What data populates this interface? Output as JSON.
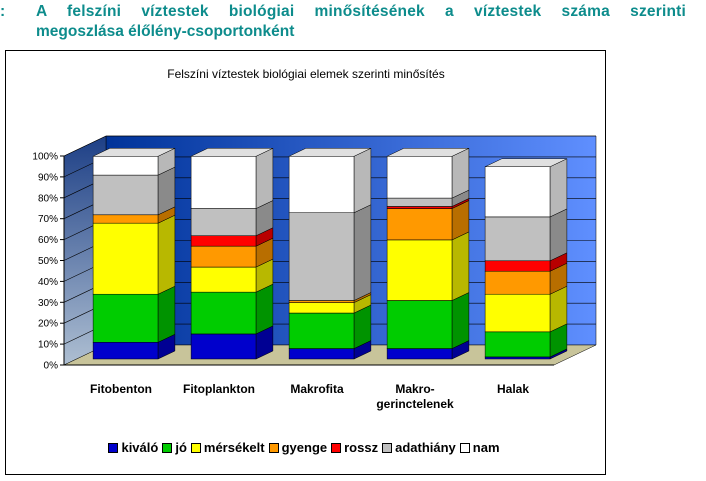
{
  "heading": {
    "bullet": ":",
    "line1": "A felszíni víztestek biológiai minősítésének a víztestek száma szerinti",
    "line2": "megoszlása élőlény-csoportonként"
  },
  "chart_data": {
    "type": "bar",
    "stacked": true,
    "three_d": true,
    "title": "Felszíni víztestek biológiai elemek szerinti minősítés",
    "categories": [
      "Fitobenton",
      "Fitoplankton",
      "Makrofita",
      "Makro-\ngerinctelenek",
      "Halak"
    ],
    "ylim": [
      0,
      100
    ],
    "yticks": [
      "0%",
      "10%",
      "20%",
      "30%",
      "40%",
      "50%",
      "60%",
      "70%",
      "80%",
      "90%",
      "100%"
    ],
    "legend_position": "bottom",
    "series": [
      {
        "name": "kiváló",
        "color": "#0000cc",
        "values": [
          8,
          12,
          5,
          5,
          1
        ]
      },
      {
        "name": "jó",
        "color": "#00cc00",
        "values": [
          23,
          20,
          17,
          23,
          12
        ]
      },
      {
        "name": "mérsékelt",
        "color": "#ffff00",
        "values": [
          34,
          12,
          5,
          29,
          18
        ]
      },
      {
        "name": "gyenge",
        "color": "#ff9900",
        "values": [
          4,
          10,
          1,
          15,
          11
        ]
      },
      {
        "name": "rossz",
        "color": "#ff0000",
        "values": [
          0,
          5,
          0,
          1,
          5
        ]
      },
      {
        "name": "adathiány",
        "color": "#c0c0c0",
        "values": [
          19,
          13,
          42,
          4,
          21
        ]
      },
      {
        "name": "nam",
        "color": "#ffffff",
        "values": [
          9,
          25,
          27,
          20,
          24
        ]
      }
    ]
  }
}
